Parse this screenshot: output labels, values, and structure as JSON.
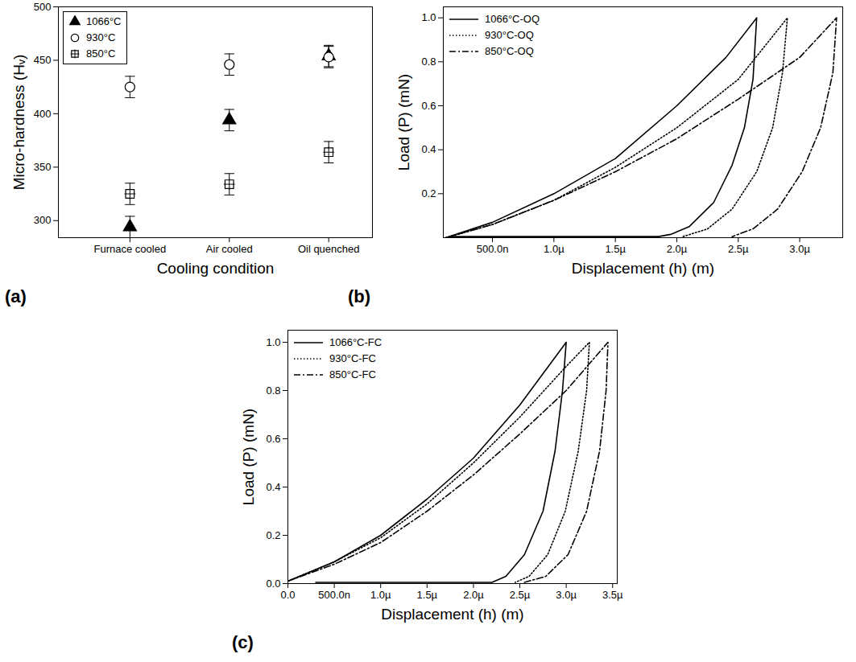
{
  "chart_data": [
    {
      "type": "scatter",
      "title": "(a)",
      "xlabel": "Cooling condition",
      "ylabel": "Micro-hardness (Hᵥ)",
      "categories": [
        "Furnace cooled",
        "Air cooled",
        "Oil quenched"
      ],
      "series": [
        {
          "name": "1066°C",
          "color": "#000000",
          "marker": "triangle",
          "values": [
            294,
            394,
            454
          ],
          "errors": [
            10,
            10,
            10
          ]
        },
        {
          "name": "930°C",
          "color": "#000000",
          "marker": "circle",
          "values": [
            425,
            446,
            453
          ],
          "errors": [
            10,
            10,
            10
          ]
        },
        {
          "name": "850°C",
          "color": "#000000",
          "marker": "square",
          "values": [
            325,
            334,
            364
          ],
          "errors": [
            10,
            10,
            10
          ]
        }
      ],
      "ylim": [
        284,
        500
      ],
      "yticks": [
        300,
        350,
        400,
        450,
        500
      ],
      "legend": "upper left"
    },
    {
      "type": "line",
      "title": "(b)",
      "xlabel": "Displacement (h) (m)",
      "ylabel": "Load (P) (mN)",
      "series": [
        {
          "name": "1066°C-OQ",
          "color": "#000000",
          "line_style": "solid",
          "x": [
            1.2e-07,
            5e-07,
            1e-06,
            1.5e-06,
            2e-06,
            2.4e-06,
            2.65e-06,
            2.62e-06,
            2.55e-06,
            2.45e-06,
            2.3e-06,
            2.1e-06,
            1.95e-06,
            1.85e-06,
            1.5e-07
          ],
          "values": [
            0,
            0.07,
            0.2,
            0.36,
            0.6,
            0.82,
            1.0,
            0.72,
            0.5,
            0.33,
            0.16,
            0.05,
            0.015,
            0.005,
            0.005
          ]
        },
        {
          "name": "930°C-OQ",
          "color": "#000000",
          "line_style": "dotted",
          "x": [
            1.2e-07,
            5e-07,
            1e-06,
            1.5e-06,
            2e-06,
            2.5e-06,
            2.9e-06,
            2.86e-06,
            2.78e-06,
            2.65e-06,
            2.45e-06,
            2.25e-06,
            2.05e-06
          ],
          "values": [
            0,
            0.06,
            0.17,
            0.32,
            0.5,
            0.72,
            1.0,
            0.75,
            0.5,
            0.3,
            0.13,
            0.04,
            0.005
          ]
        },
        {
          "name": "850°C-OQ",
          "color": "#000000",
          "line_style": "dashdot",
          "x": [
            1.2e-07,
            5e-07,
            1e-06,
            1.5e-06,
            2e-06,
            2.5e-06,
            3e-06,
            3.3e-06,
            3.27e-06,
            3.17e-06,
            3.02e-06,
            2.82e-06,
            2.62e-06,
            2.45e-06
          ],
          "values": [
            0,
            0.06,
            0.17,
            0.3,
            0.45,
            0.63,
            0.82,
            1.0,
            0.75,
            0.5,
            0.3,
            0.13,
            0.04,
            0.005
          ]
        }
      ],
      "xlim": [
        1e-07,
        3.35e-06
      ],
      "xticks": [
        {
          "value": 5e-07,
          "label": "500.0n"
        },
        {
          "value": 1e-06,
          "label": "1.0µ"
        },
        {
          "value": 1.5e-06,
          "label": "1.5µ"
        },
        {
          "value": 2e-06,
          "label": "2.0µ"
        },
        {
          "value": 2.5e-06,
          "label": "2.5µ"
        },
        {
          "value": 3e-06,
          "label": "3.0µ"
        }
      ],
      "ylim": [
        0,
        1.05
      ],
      "yticks": [
        0.2,
        0.4,
        0.6,
        0.8,
        {
          "value": 1,
          "label": "1.0"
        }
      ],
      "legend": "upper left"
    },
    {
      "type": "line",
      "title": "(c)",
      "xlabel": "Displacement (h) (m)",
      "ylabel": "Load (P) (mN)",
      "series": [
        {
          "name": "1066°C-FC",
          "color": "#000000",
          "line_style": "solid",
          "x": [
            0,
            5e-07,
            1e-06,
            1.5e-06,
            2e-06,
            2.5e-06,
            3e-06,
            2.96e-06,
            2.88e-06,
            2.75e-06,
            2.55e-06,
            2.35e-06,
            2.2e-06,
            3e-07
          ],
          "values": [
            0.01,
            0.09,
            0.2,
            0.35,
            0.52,
            0.74,
            1.0,
            0.8,
            0.55,
            0.3,
            0.12,
            0.03,
            0.005,
            0.005
          ]
        },
        {
          "name": "930°C-FC",
          "color": "#000000",
          "line_style": "dotted",
          "x": [
            0,
            5e-07,
            1e-06,
            1.5e-06,
            2e-06,
            2.5e-06,
            3e-06,
            3.25e-06,
            3.22e-06,
            3.13e-06,
            2.99e-06,
            2.8e-06,
            2.6e-06,
            2.45e-06
          ],
          "values": [
            0.01,
            0.09,
            0.19,
            0.33,
            0.5,
            0.69,
            0.9,
            1.0,
            0.8,
            0.55,
            0.3,
            0.12,
            0.03,
            0.005
          ]
        },
        {
          "name": "850°C-FC",
          "color": "#000000",
          "line_style": "dashdot",
          "x": [
            0,
            5e-07,
            1e-06,
            1.5e-06,
            2e-06,
            2.5e-06,
            3e-06,
            3.45e-06,
            3.43e-06,
            3.36e-06,
            3.22e-06,
            3.02e-06,
            2.78e-06,
            2.55e-06
          ],
          "values": [
            0.01,
            0.08,
            0.17,
            0.3,
            0.45,
            0.62,
            0.8,
            1.0,
            0.8,
            0.55,
            0.3,
            0.12,
            0.03,
            0.005
          ]
        }
      ],
      "xlim": [
        0,
        3.55e-06
      ],
      "xticks": [
        {
          "value": 0,
          "label": "0.0"
        },
        {
          "value": 5e-07,
          "label": "500.0n"
        },
        {
          "value": 1e-06,
          "label": "1.0µ"
        },
        {
          "value": 1.5e-06,
          "label": "1.5µ"
        },
        {
          "value": 2e-06,
          "label": "2.0µ"
        },
        {
          "value": 2.5e-06,
          "label": "2.5µ"
        },
        {
          "value": 3e-06,
          "label": "3.0µ"
        },
        {
          "value": 3.5e-06,
          "label": "3.5µ"
        }
      ],
      "ylim": [
        0,
        1.05
      ],
      "yticks": [
        {
          "value": 0,
          "label": "0.0"
        },
        0.2,
        0.4,
        0.6,
        0.8,
        {
          "value": 1,
          "label": "1.0"
        }
      ],
      "legend": "upper left"
    }
  ]
}
